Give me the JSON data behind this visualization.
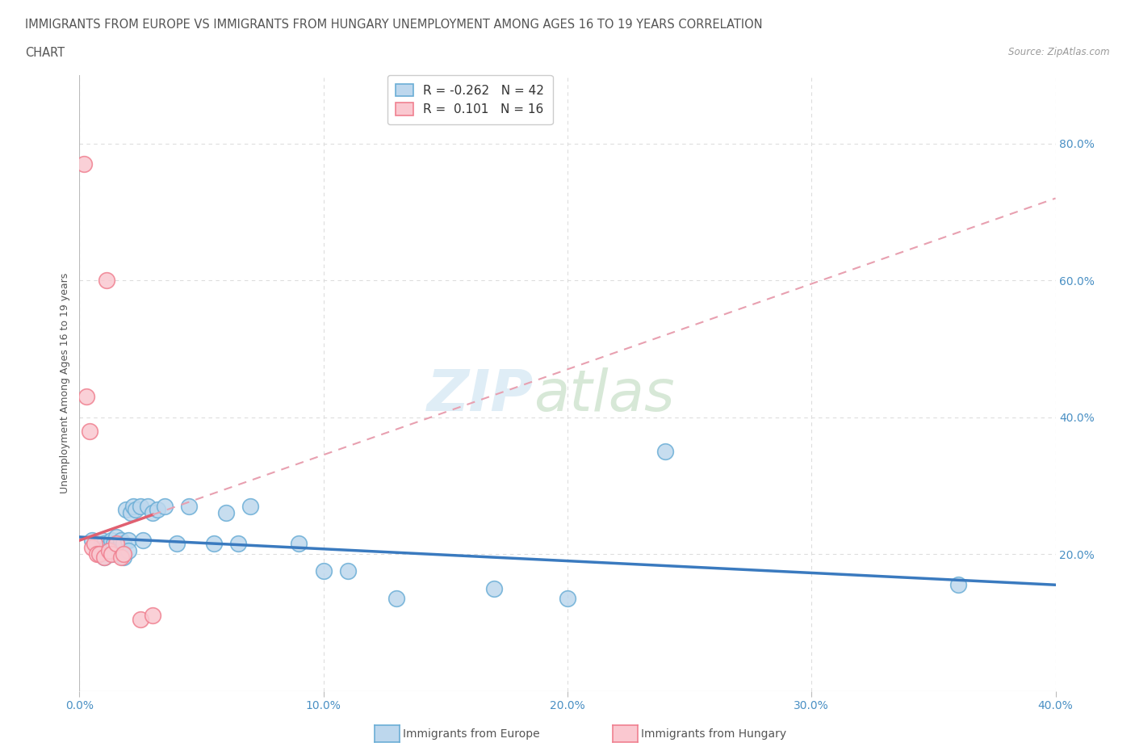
{
  "title_line1": "IMMIGRANTS FROM EUROPE VS IMMIGRANTS FROM HUNGARY UNEMPLOYMENT AMONG AGES 16 TO 19 YEARS CORRELATION",
  "title_line2": "CHART",
  "source_text": "Source: ZipAtlas.com",
  "ylabel": "Unemployment Among Ages 16 to 19 years",
  "xlim": [
    0.0,
    0.4
  ],
  "ylim": [
    0.0,
    0.9
  ],
  "xtick_vals": [
    0.0,
    0.1,
    0.2,
    0.3,
    0.4
  ],
  "xtick_labels": [
    "0.0%",
    "10.0%",
    "20.0%",
    "30.0%",
    "40.0%"
  ],
  "ytick_vals": [
    0.2,
    0.4,
    0.6,
    0.8
  ],
  "ytick_labels": [
    "20.0%",
    "40.0%",
    "60.0%",
    "80.0%"
  ],
  "background_color": "#ffffff",
  "grid_color": "#dddddd",
  "europe_color": "#6baed6",
  "europe_fill": "#bdd7ed",
  "hungary_color": "#f08090",
  "hungary_fill": "#fac8d0",
  "europe_R": -0.262,
  "europe_N": 42,
  "hungary_R": 0.101,
  "hungary_N": 16,
  "europe_scatter_x": [
    0.005,
    0.007,
    0.008,
    0.009,
    0.01,
    0.01,
    0.011,
    0.012,
    0.013,
    0.013,
    0.014,
    0.015,
    0.016,
    0.017,
    0.018,
    0.018,
    0.019,
    0.02,
    0.02,
    0.021,
    0.022,
    0.023,
    0.025,
    0.026,
    0.028,
    0.03,
    0.032,
    0.035,
    0.04,
    0.045,
    0.055,
    0.06,
    0.065,
    0.07,
    0.09,
    0.1,
    0.11,
    0.13,
    0.17,
    0.2,
    0.24,
    0.36
  ],
  "europe_scatter_y": [
    0.22,
    0.215,
    0.2,
    0.22,
    0.215,
    0.195,
    0.21,
    0.205,
    0.22,
    0.2,
    0.215,
    0.225,
    0.21,
    0.22,
    0.195,
    0.215,
    0.265,
    0.22,
    0.205,
    0.26,
    0.27,
    0.265,
    0.27,
    0.22,
    0.27,
    0.26,
    0.265,
    0.27,
    0.215,
    0.27,
    0.215,
    0.26,
    0.215,
    0.27,
    0.215,
    0.175,
    0.175,
    0.135,
    0.15,
    0.135,
    0.35,
    0.155
  ],
  "hungary_scatter_x": [
    0.002,
    0.003,
    0.004,
    0.005,
    0.006,
    0.007,
    0.008,
    0.01,
    0.011,
    0.012,
    0.013,
    0.015,
    0.017,
    0.018,
    0.025,
    0.03
  ],
  "hungary_scatter_y": [
    0.77,
    0.43,
    0.38,
    0.21,
    0.215,
    0.2,
    0.2,
    0.195,
    0.6,
    0.205,
    0.2,
    0.215,
    0.195,
    0.2,
    0.105,
    0.11
  ],
  "eu_trend_x0": 0.0,
  "eu_trend_y0": 0.225,
  "eu_trend_x1": 0.4,
  "eu_trend_y1": 0.155,
  "hu_trend_x0": 0.0,
  "hu_trend_y0": 0.22,
  "hu_trend_x1": 0.4,
  "hu_trend_y1": 0.72
}
